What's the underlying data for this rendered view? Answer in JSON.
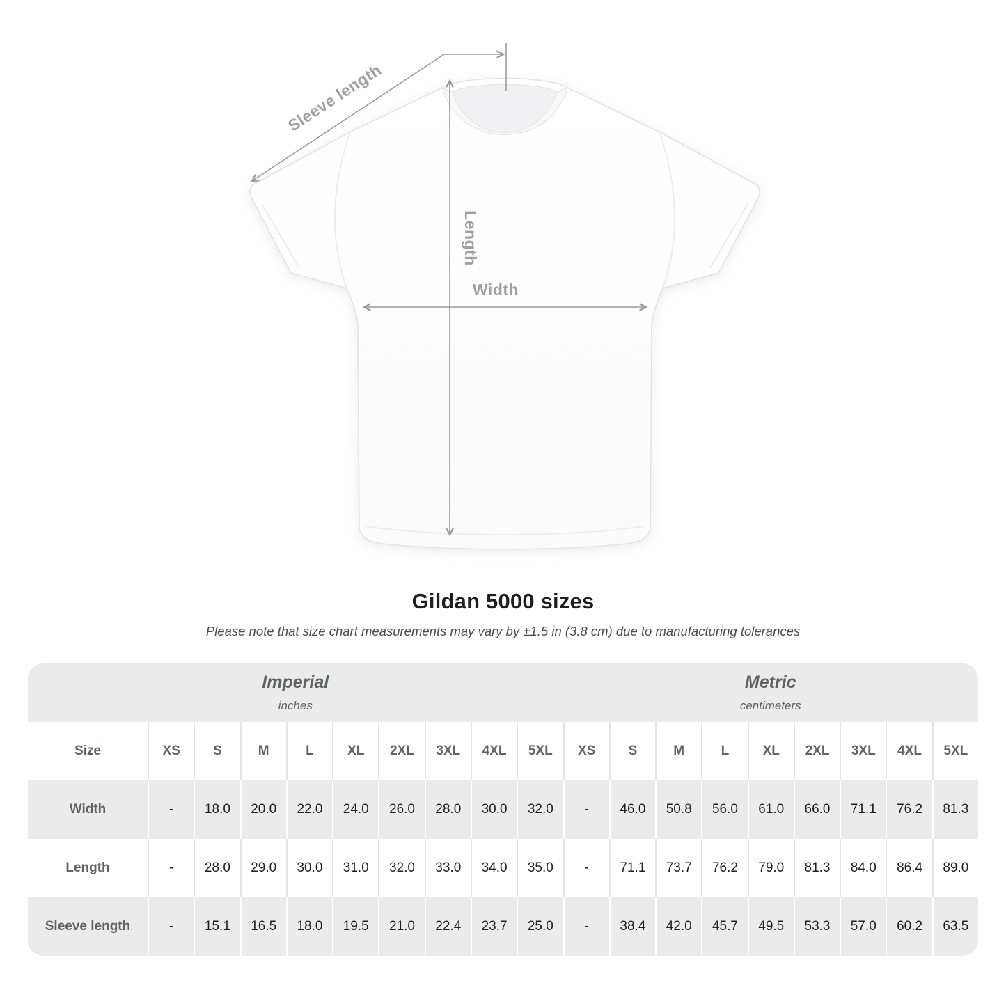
{
  "diagram": {
    "sleeve_length_label": "Sleeve length",
    "length_label": "Length",
    "width_label": "Width"
  },
  "heading": {
    "title": "Gildan 5000 sizes",
    "note": "Please note that size chart measurements may vary by ±1.5 in (3.8 cm) due to manufacturing tolerances"
  },
  "chart_data": {
    "type": "table",
    "title": "Gildan 5000 sizes",
    "unit_groups": [
      {
        "label": "Imperial",
        "unit": "inches"
      },
      {
        "label": "Metric",
        "unit": "centimeters"
      }
    ],
    "size_header": "Size",
    "sizes": [
      "XS",
      "S",
      "M",
      "L",
      "XL",
      "2XL",
      "3XL",
      "4XL",
      "5XL"
    ],
    "rows": [
      {
        "label": "Width",
        "imperial": [
          "-",
          "18.0",
          "20.0",
          "22.0",
          "24.0",
          "26.0",
          "28.0",
          "30.0",
          "32.0"
        ],
        "metric": [
          "-",
          "46.0",
          "50.8",
          "56.0",
          "61.0",
          "66.0",
          "71.1",
          "76.2",
          "81.3"
        ]
      },
      {
        "label": "Length",
        "imperial": [
          "-",
          "28.0",
          "29.0",
          "30.0",
          "31.0",
          "32.0",
          "33.0",
          "34.0",
          "35.0"
        ],
        "metric": [
          "-",
          "71.1",
          "73.7",
          "76.2",
          "79.0",
          "81.3",
          "84.0",
          "86.4",
          "89.0"
        ]
      },
      {
        "label": "Sleeve length",
        "imperial": [
          "-",
          "15.1",
          "16.5",
          "18.0",
          "19.5",
          "21.0",
          "22.4",
          "23.7",
          "25.0"
        ],
        "metric": [
          "-",
          "38.4",
          "42.0",
          "45.7",
          "49.5",
          "53.3",
          "57.0",
          "60.2",
          "63.5"
        ]
      }
    ]
  },
  "colors": {
    "table_gray": "#ebebeb",
    "header_text": "#5d6466",
    "value_text": "#212121",
    "measure_line": "#9a9a9a",
    "measure_label": "#9aa0a3",
    "shirt_outline": "#e4e4e8"
  }
}
